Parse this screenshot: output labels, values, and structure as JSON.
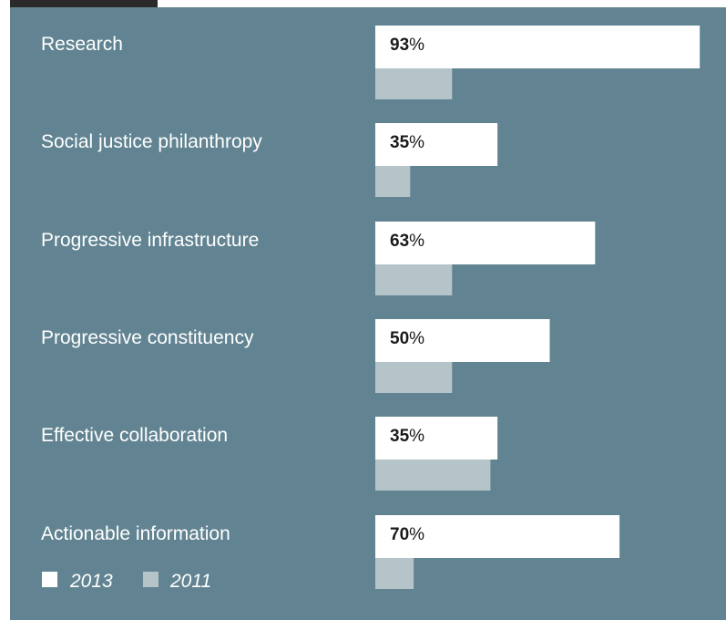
{
  "colors": {
    "panel_background": "#628492",
    "bar_2013": "#ffffff",
    "bar_2011": "#b4c4c8",
    "top_tab": "#2a2a2a"
  },
  "chart_data": {
    "type": "bar",
    "orientation": "horizontal",
    "categories": [
      "Research",
      "Social justice philanthropy",
      "Progressive infrastructure",
      "Progressive constituency",
      "Effective collaboration",
      "Actionable information"
    ],
    "series": [
      {
        "name": "2013",
        "values": [
          93,
          35,
          63,
          50,
          35,
          70
        ],
        "color": "#ffffff",
        "labeled": true
      },
      {
        "name": "2011",
        "values": [
          22,
          10,
          22,
          22,
          33,
          11
        ],
        "color": "#b4c4c8",
        "labeled": false
      }
    ],
    "value_suffix": "%",
    "xlim": [
      0,
      100
    ],
    "grid": false,
    "legend": {
      "position": "bottom-left",
      "entries": [
        "2013",
        "2011"
      ]
    }
  }
}
